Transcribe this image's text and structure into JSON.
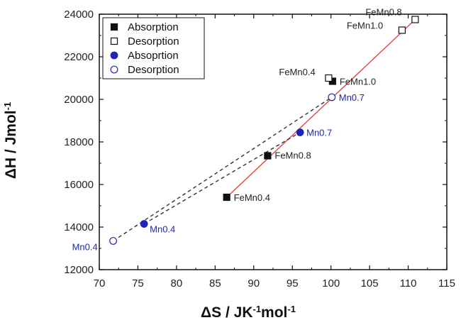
{
  "chart_data": {
    "type": "scatter",
    "xlabel": "ΔS / JK",
    "xlabel_sup1": "-1",
    "xlabel_tail": "mol",
    "xlabel_sup2": "-1",
    "ylabel": "ΔH / Jmol",
    "ylabel_sup": "-1",
    "xlim": [
      70,
      115
    ],
    "ylim": [
      12000,
      24000
    ],
    "xticks": [
      70,
      75,
      80,
      85,
      90,
      95,
      100,
      105,
      110,
      115
    ],
    "yticks": [
      12000,
      14000,
      16000,
      18000,
      20000,
      22000,
      24000
    ],
    "grid": false,
    "legend_position": "top-left",
    "legend": [
      {
        "label": "Absorption",
        "marker": "square-filled",
        "color": "#111111"
      },
      {
        "label": "Desorption",
        "marker": "square-open",
        "color": "#111111"
      },
      {
        "label": "Absoprtion",
        "marker": "circle-filled",
        "color": "#1f24b5"
      },
      {
        "label": "Desorption",
        "marker": "circle-open",
        "color": "#1f24b5"
      }
    ],
    "series": [
      {
        "marker": "square-filled",
        "color": "#111111",
        "points": [
          {
            "x": 86.5,
            "y": 15400,
            "label": "FeMn0.4"
          },
          {
            "x": 91.8,
            "y": 17350,
            "label": "FeMn0.8"
          },
          {
            "x": 100.2,
            "y": 20850,
            "label": "FeMn1.0"
          }
        ]
      },
      {
        "marker": "square-open",
        "color": "#111111",
        "points": [
          {
            "x": 99.7,
            "y": 21000,
            "label": "FeMn0.4"
          },
          {
            "x": 109.2,
            "y": 23250,
            "label": "FeMn1.0"
          },
          {
            "x": 110.9,
            "y": 23750,
            "label": "FeMn0.8"
          }
        ]
      },
      {
        "marker": "circle-filled",
        "color": "#1f24b5",
        "points": [
          {
            "x": 75.8,
            "y": 14150,
            "label": "Mn0.4"
          },
          {
            "x": 96.0,
            "y": 18450,
            "label": "Mn0.7"
          }
        ]
      },
      {
        "marker": "circle-open",
        "color": "#1f24b5",
        "points": [
          {
            "x": 71.8,
            "y": 13350,
            "label": "Mn0.4"
          },
          {
            "x": 100.1,
            "y": 20100,
            "label": "Mn0.7"
          }
        ]
      }
    ],
    "fit_lines": [
      {
        "style": "solid",
        "color": "#e0463c",
        "from": [
          86.5,
          15400
        ],
        "to": [
          110.9,
          23750
        ]
      },
      {
        "style": "dashed",
        "color": "#333333",
        "from": [
          75.8,
          14150
        ],
        "to": [
          96.0,
          18450
        ]
      },
      {
        "style": "dashed",
        "color": "#333333",
        "from": [
          71.8,
          13350
        ],
        "to": [
          100.1,
          20100
        ]
      }
    ]
  }
}
